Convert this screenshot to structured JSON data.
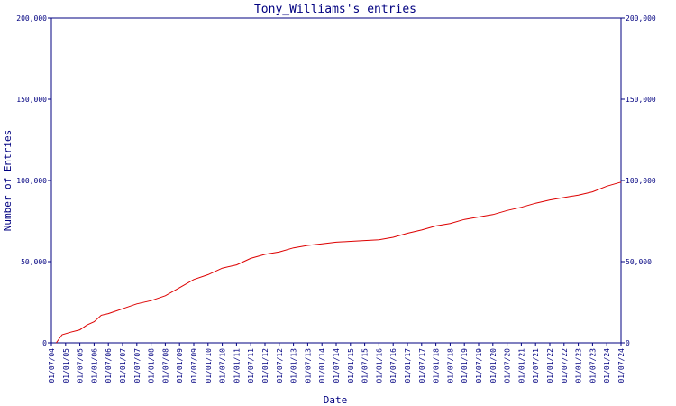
{
  "chart_data": {
    "type": "line",
    "title": "Tony_Williams's entries",
    "xlabel": "Date",
    "ylabel": "Number of Entries",
    "ylim": [
      0,
      200000
    ],
    "xlim": [
      "2004-07-01",
      "2024-07-01"
    ],
    "y_ticks": [
      0,
      50000,
      100000,
      150000,
      200000
    ],
    "y_tick_labels": [
      "0",
      "50,000",
      "100,000",
      "150,000",
      "200,000"
    ],
    "y_axis_right": true,
    "grid": false,
    "legend": "none",
    "x_tick_labels": [
      "01/07/04",
      "01/01/05",
      "01/07/05",
      "01/01/06",
      "01/07/06",
      "01/01/07",
      "01/07/07",
      "01/01/08",
      "01/07/08",
      "01/01/09",
      "01/07/09",
      "01/01/10",
      "01/07/10",
      "01/01/11",
      "01/07/11",
      "01/01/12",
      "01/07/12",
      "01/01/13",
      "01/07/13",
      "01/01/14",
      "01/07/14",
      "01/01/15",
      "01/07/15",
      "01/01/16",
      "01/07/16",
      "01/01/17",
      "01/07/17",
      "01/01/18",
      "01/07/18",
      "01/01/19",
      "01/07/19",
      "01/01/20",
      "01/07/20",
      "01/01/21",
      "01/07/21",
      "01/01/22",
      "01/07/22",
      "01/01/23",
      "01/07/23",
      "01/01/24",
      "01/07/24"
    ],
    "series": [
      {
        "color": "#dd0000",
        "points": [
          [
            "2004-09-01",
            0
          ],
          [
            "2004-11-15",
            5000
          ],
          [
            "2005-03-01",
            6500
          ],
          [
            "2005-07-01",
            8000
          ],
          [
            "2005-10-01",
            11000
          ],
          [
            "2006-01-01",
            13000
          ],
          [
            "2006-04-01",
            17000
          ],
          [
            "2006-07-01",
            18000
          ],
          [
            "2007-01-01",
            21000
          ],
          [
            "2007-07-01",
            24000
          ],
          [
            "2008-01-01",
            26000
          ],
          [
            "2008-07-01",
            29000
          ],
          [
            "2009-01-01",
            34000
          ],
          [
            "2009-07-01",
            39000
          ],
          [
            "2010-01-01",
            42000
          ],
          [
            "2010-07-01",
            46000
          ],
          [
            "2011-01-01",
            48000
          ],
          [
            "2011-07-01",
            52000
          ],
          [
            "2012-01-01",
            54500
          ],
          [
            "2012-07-01",
            56000
          ],
          [
            "2013-01-01",
            58500
          ],
          [
            "2013-07-01",
            60000
          ],
          [
            "2014-01-01",
            61000
          ],
          [
            "2014-07-01",
            62000
          ],
          [
            "2015-01-01",
            62500
          ],
          [
            "2015-07-01",
            63000
          ],
          [
            "2016-01-01",
            63500
          ],
          [
            "2016-07-01",
            65000
          ],
          [
            "2017-01-01",
            67500
          ],
          [
            "2017-07-01",
            69500
          ],
          [
            "2018-01-01",
            72000
          ],
          [
            "2018-07-01",
            73500
          ],
          [
            "2019-01-01",
            76000
          ],
          [
            "2019-07-01",
            77500
          ],
          [
            "2020-01-01",
            79000
          ],
          [
            "2020-07-01",
            81500
          ],
          [
            "2021-01-01",
            83500
          ],
          [
            "2021-07-01",
            86000
          ],
          [
            "2022-01-01",
            88000
          ],
          [
            "2022-07-01",
            89500
          ],
          [
            "2023-01-01",
            91000
          ],
          [
            "2023-07-01",
            93000
          ],
          [
            "2024-01-01",
            96500
          ],
          [
            "2024-07-01",
            99000
          ]
        ]
      }
    ]
  }
}
